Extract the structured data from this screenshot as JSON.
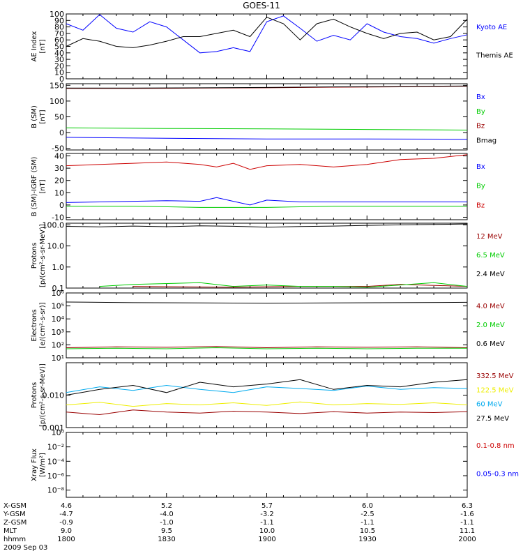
{
  "title": "GOES-11",
  "colors": {
    "black": "#000000",
    "blue": "#0000ff",
    "green": "#00cc00",
    "red": "#cc0000",
    "darkred": "#990000",
    "cyan": "#00aaee",
    "yellow": "#eeee00"
  },
  "chart_data": [
    {
      "id": "ae",
      "type": "line",
      "ylabel": "AE Index\n[nT]",
      "ylim": [
        0,
        100
      ],
      "yscale": "linear",
      "yticks": [
        0,
        10,
        20,
        30,
        40,
        50,
        60,
        70,
        80,
        90,
        100
      ],
      "ytick_labels": [
        "0",
        "10",
        "20",
        "30",
        "40",
        "50",
        "60",
        "70",
        "80",
        "90",
        "100"
      ],
      "series": [
        {
          "name": "Kyoto AE",
          "color": "blue",
          "x": [
            0,
            5,
            10,
            15,
            20,
            25,
            30,
            35,
            40,
            45,
            50,
            55,
            60,
            65,
            70,
            75,
            80,
            85,
            90,
            95,
            100,
            105,
            110,
            115,
            120
          ],
          "y": [
            85,
            75,
            99,
            78,
            72,
            88,
            80,
            60,
            40,
            42,
            48,
            42,
            88,
            97,
            78,
            58,
            67,
            60,
            85,
            72,
            65,
            62,
            55,
            62,
            68
          ]
        },
        {
          "name": "Themis AE",
          "color": "black",
          "x": [
            0,
            5,
            10,
            15,
            20,
            25,
            30,
            35,
            40,
            45,
            50,
            55,
            60,
            65,
            70,
            75,
            80,
            85,
            90,
            95,
            100,
            105,
            110,
            115,
            120
          ],
          "y": [
            50,
            62,
            58,
            50,
            48,
            52,
            58,
            65,
            65,
            70,
            75,
            65,
            95,
            85,
            60,
            85,
            92,
            80,
            70,
            62,
            70,
            72,
            60,
            65,
            92
          ]
        }
      ]
    },
    {
      "id": "bgsm",
      "type": "line",
      "ylabel": "B (SM)\n[nT]",
      "ylim": [
        -55,
        155
      ],
      "yscale": "linear",
      "yticks": [
        -50,
        0,
        50,
        100,
        150
      ],
      "ytick_labels": [
        "-50",
        "0",
        "50",
        "100",
        "150"
      ],
      "series": [
        {
          "name": "Bx",
          "color": "blue",
          "x": [
            0,
            30,
            60,
            90,
            120
          ],
          "y": [
            -15,
            -18,
            -20,
            -20,
            -21
          ]
        },
        {
          "name": "By",
          "color": "green",
          "x": [
            0,
            30,
            60,
            90,
            120
          ],
          "y": [
            15,
            13,
            12,
            10,
            8
          ]
        },
        {
          "name": "Bz",
          "color": "darkred",
          "x": [
            0,
            20,
            40,
            60,
            80,
            100,
            120
          ],
          "y": [
            140,
            140,
            141,
            142,
            144,
            145,
            147
          ]
        },
        {
          "name": "Bmag",
          "color": "black",
          "x": [
            0,
            20,
            40,
            60,
            80,
            100,
            120
          ],
          "y": [
            141,
            141,
            142,
            143,
            145,
            146,
            148
          ]
        }
      ]
    },
    {
      "id": "bigrf",
      "type": "line",
      "ylabel": "B (SM)-IGRF (SM)\n[nT]",
      "ylim": [
        -12,
        42
      ],
      "yscale": "linear",
      "yticks": [
        -10,
        0,
        10,
        20,
        30,
        40
      ],
      "ytick_labels": [
        "-10",
        "0",
        "10",
        "20",
        "30",
        "40"
      ],
      "series": [
        {
          "name": "Bx",
          "color": "blue",
          "x": [
            0,
            10,
            20,
            30,
            40,
            45,
            50,
            55,
            60,
            70,
            80,
            90,
            100,
            110,
            120
          ],
          "y": [
            2,
            2.5,
            3,
            3.5,
            3,
            6,
            3,
            0,
            4,
            2.5,
            2.5,
            2.5,
            2.5,
            2.5,
            2.5
          ]
        },
        {
          "name": "By",
          "color": "green",
          "x": [
            0,
            20,
            40,
            60,
            80,
            100,
            120
          ],
          "y": [
            -1,
            -1,
            -2,
            -2,
            -1,
            -1,
            -1
          ]
        },
        {
          "name": "Bz",
          "color": "red",
          "x": [
            0,
            10,
            20,
            30,
            40,
            45,
            50,
            55,
            60,
            70,
            80,
            90,
            100,
            110,
            120
          ],
          "y": [
            32,
            33,
            34,
            35,
            33,
            31,
            34,
            29,
            32,
            33,
            31,
            33,
            37,
            38,
            41
          ]
        }
      ]
    },
    {
      "id": "protons_low",
      "type": "line",
      "ylabel": "Protons\n[p/(cm²-s-sr-MeV)]",
      "ylim": [
        0.1,
        120
      ],
      "yscale": "log",
      "yticks": [
        0.1,
        1,
        10,
        100
      ],
      "ytick_labels": [
        "0.1",
        "1.0",
        "10.0",
        "100.0"
      ],
      "series": [
        {
          "name": "12 MeV",
          "color": "darkred",
          "x": [
            0,
            10,
            20,
            30,
            40,
            50,
            60,
            70,
            80,
            90,
            100,
            110,
            120
          ],
          "y": [
            null,
            null,
            0.12,
            null,
            null,
            0.11,
            null,
            0.12,
            null,
            0.12,
            0.15,
            null,
            0.12
          ]
        },
        {
          "name": "6.5 MeV",
          "color": "green",
          "x": [
            0,
            10,
            20,
            30,
            40,
            50,
            60,
            70,
            80,
            90,
            100,
            110,
            120
          ],
          "y": [
            null,
            0.12,
            0.15,
            null,
            0.18,
            0.12,
            0.14,
            0.12,
            0.12,
            0.11,
            0.14,
            0.18,
            0.12
          ]
        },
        {
          "name": "2.4 MeV",
          "color": "black",
          "x": [
            0,
            10,
            20,
            30,
            40,
            50,
            60,
            70,
            80,
            90,
            100,
            110,
            120
          ],
          "y": [
            85,
            80,
            88,
            82,
            90,
            86,
            78,
            84,
            88,
            95,
            100,
            105,
            110
          ]
        }
      ]
    },
    {
      "id": "electrons",
      "type": "line",
      "ylabel": "Electrons\n[e/(cm²-s-sr)]",
      "ylim": [
        10,
        1000000
      ],
      "yscale": "log",
      "yticks": [
        10,
        100,
        1000,
        10000,
        100000,
        1000000
      ],
      "ytick_labels": [
        "10¹",
        "10²",
        "10³",
        "10⁴",
        "10⁵",
        "10⁶"
      ],
      "series": [
        {
          "name": "4.0 MeV",
          "color": "darkred",
          "x": [
            0,
            15,
            30,
            45,
            60,
            75,
            90,
            105,
            120
          ],
          "y": [
            60,
            70,
            65,
            75,
            60,
            70,
            65,
            70,
            60
          ]
        },
        {
          "name": "2.0 MeV",
          "color": "green",
          "x": [
            0,
            15,
            30,
            45,
            60,
            75,
            90,
            105,
            120
          ],
          "y": [
            50,
            55,
            50,
            60,
            50,
            55,
            50,
            55,
            55
          ]
        },
        {
          "name": "0.6 MeV",
          "color": "black",
          "x": [
            0,
            20,
            40,
            60,
            80,
            100,
            120
          ],
          "y": [
            200000,
            180000,
            170000,
            160000,
            170000,
            180000,
            190000
          ]
        }
      ]
    },
    {
      "id": "protons_high",
      "type": "line",
      "ylabel": "Protons\n[p/(cm²-s-sr-MeV)]",
      "ylim": [
        0.001,
        0.1
      ],
      "yscale": "log",
      "yticks": [
        0.001,
        0.01
      ],
      "ytick_labels": [
        "0.001",
        "0.010"
      ],
      "series": [
        {
          "name": "332.5 MeV",
          "color": "darkred",
          "x": [
            0,
            10,
            20,
            30,
            40,
            50,
            60,
            70,
            80,
            90,
            100,
            110,
            120
          ],
          "y": [
            0.003,
            0.0025,
            0.0035,
            0.003,
            0.0028,
            0.0032,
            0.003,
            0.0027,
            0.0031,
            0.0028,
            0.003,
            0.0029,
            0.0031
          ]
        },
        {
          "name": "122.5 MeV",
          "color": "yellow",
          "x": [
            0,
            10,
            20,
            30,
            40,
            50,
            60,
            70,
            80,
            90,
            100,
            110,
            120
          ],
          "y": [
            0.005,
            0.006,
            0.0045,
            0.0055,
            0.005,
            0.0058,
            0.0048,
            0.0062,
            0.005,
            0.0055,
            0.0052,
            0.0058,
            0.005
          ]
        },
        {
          "name": "60 MeV",
          "color": "cyan",
          "x": [
            0,
            10,
            20,
            30,
            40,
            50,
            60,
            70,
            80,
            90,
            100,
            110,
            120
          ],
          "y": [
            0.012,
            0.018,
            0.014,
            0.02,
            0.015,
            0.012,
            0.018,
            0.016,
            0.014,
            0.019,
            0.015,
            0.017,
            0.016
          ]
        },
        {
          "name": "27.5 MeV",
          "color": "black",
          "x": [
            0,
            10,
            20,
            30,
            40,
            50,
            60,
            70,
            80,
            90,
            100,
            110,
            120
          ],
          "y": [
            0.01,
            0.015,
            0.02,
            0.012,
            0.025,
            0.018,
            0.022,
            0.03,
            0.015,
            0.02,
            0.018,
            0.025,
            0.03
          ]
        }
      ]
    },
    {
      "id": "xray",
      "type": "line",
      "ylabel": "Xray Flux\n[W/m²]",
      "ylim": [
        1e-09,
        1
      ],
      "yscale": "log",
      "yticks": [
        1e-08,
        1e-06,
        0.0001,
        0.01,
        1
      ],
      "ytick_labels": [
        "10⁻⁸",
        "10⁻⁶",
        "10⁻⁴",
        "10⁻²",
        "10⁰"
      ],
      "series": [
        {
          "name": "0.1-0.8 nm",
          "color": "red",
          "x": [],
          "y": []
        },
        {
          "name": "0.05-0.3 nm",
          "color": "blue",
          "x": [],
          "y": []
        }
      ]
    }
  ],
  "ephemeris": {
    "row_labels": [
      "X-GSM",
      "Y-GSM",
      "Z-GSM",
      "MLT",
      "hhmm"
    ],
    "columns": [
      [
        "4.6",
        "-4.7",
        "-0.9",
        "9.0",
        "1800"
      ],
      [
        "5.2",
        "-4.0",
        "-1.0",
        "9.5",
        "1830"
      ],
      [
        "5.7",
        "-3.2",
        "-1.1",
        "10.0",
        "1900"
      ],
      [
        "6.0",
        "-2.5",
        "-1.1",
        "10.5",
        "1930"
      ],
      [
        "6.3",
        "-1.6",
        "-1.1",
        "11.1",
        "2000"
      ]
    ],
    "date": "2009 Sep 03"
  }
}
